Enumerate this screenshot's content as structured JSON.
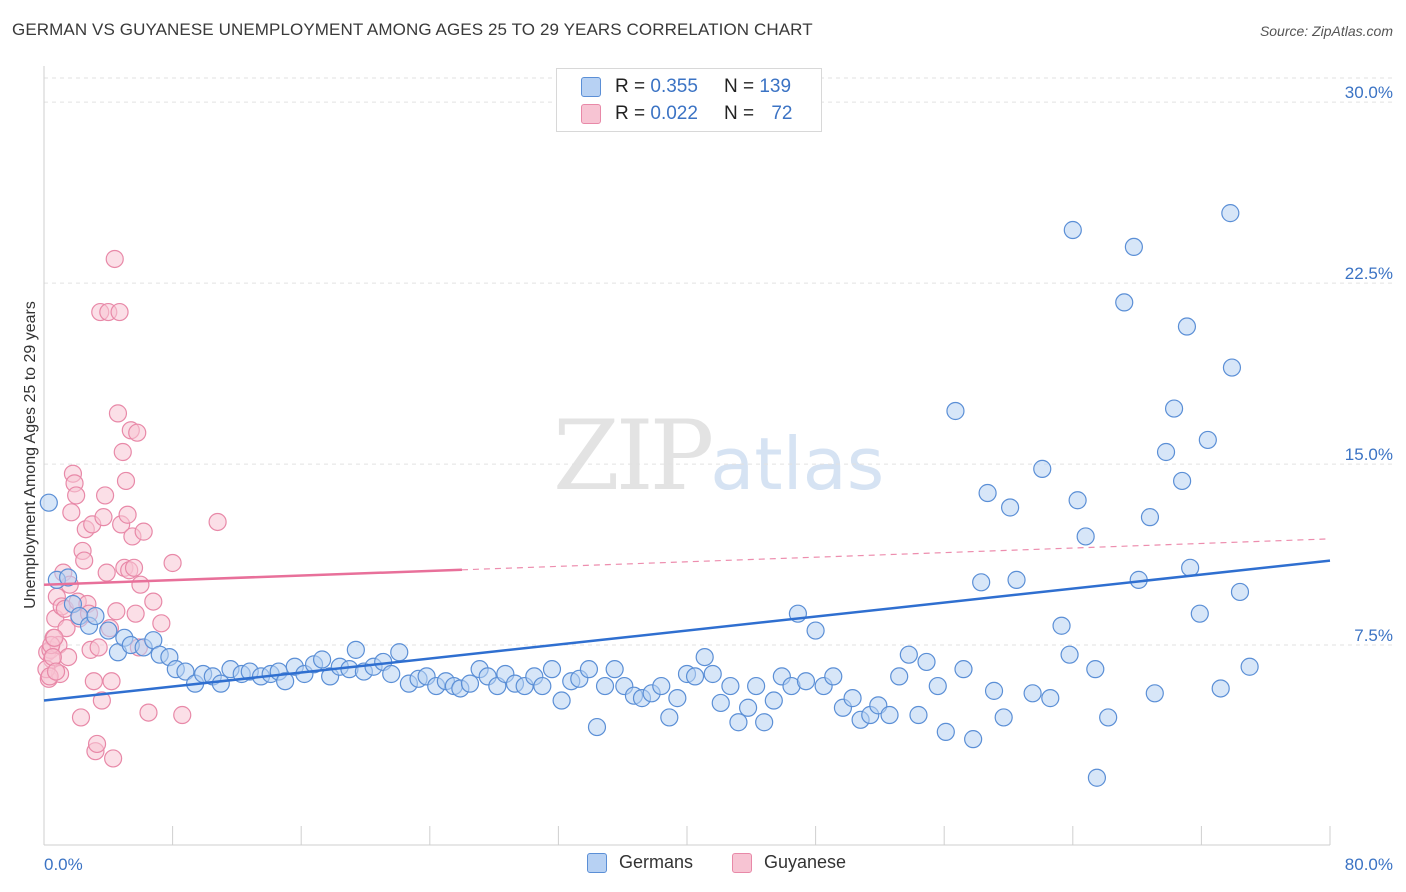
{
  "title": "GERMAN VS GUYANESE UNEMPLOYMENT AMONG AGES 25 TO 29 YEARS CORRELATION CHART",
  "source": "Source: ZipAtlas.com",
  "watermark": {
    "zip": "ZIP",
    "atlas": "atlas"
  },
  "legend": {
    "r_label": "R =",
    "n_label": "N =",
    "series": [
      {
        "name": "Germans",
        "r": "0.355",
        "n": "139"
      },
      {
        "name": "Guyanese",
        "r": "0.022",
        "n": "72"
      }
    ]
  },
  "colors": {
    "blue_fill": "#b7d1f3",
    "blue_stroke": "#5b8fd6",
    "blue_line": "#2f6fd0",
    "pink_fill": "#f7c4d3",
    "pink_stroke": "#e889a8",
    "pink_line": "#e8709a",
    "axis_text": "#3b73c4",
    "grid": "#e2e2e2"
  },
  "chart_data": {
    "type": "scatter",
    "title": "GERMAN VS GUYANESE UNEMPLOYMENT AMONG AGES 25 TO 29 YEARS CORRELATION CHART",
    "xlabel": "",
    "ylabel": "Unemployment Among Ages 25 to 29 years",
    "xlim": [
      0,
      80
    ],
    "ylim": [
      0,
      31
    ],
    "x_tick_labels": [
      "0.0%",
      "80.0%"
    ],
    "y_ticks": [
      7.5,
      15.0,
      22.5,
      30.0
    ],
    "y_tick_labels": [
      "7.5%",
      "15.0%",
      "22.5%",
      "30.0%"
    ],
    "grid": true,
    "legend_position": "top-center",
    "series": [
      {
        "name": "Germans",
        "trend": {
          "x0": 0,
          "y0": 5.2,
          "x1": 80,
          "y1": 11.0,
          "dashed_from": null
        },
        "points": [
          [
            0.3,
            13.4
          ],
          [
            0.8,
            10.2
          ],
          [
            1.5,
            10.3
          ],
          [
            1.8,
            9.2
          ],
          [
            2.2,
            8.7
          ],
          [
            2.8,
            8.3
          ],
          [
            3.2,
            8.7
          ],
          [
            4.0,
            8.1
          ],
          [
            4.6,
            7.2
          ],
          [
            5.0,
            7.8
          ],
          [
            5.4,
            7.5
          ],
          [
            6.2,
            7.4
          ],
          [
            6.8,
            7.7
          ],
          [
            7.2,
            7.1
          ],
          [
            7.8,
            7.0
          ],
          [
            8.2,
            6.5
          ],
          [
            8.8,
            6.4
          ],
          [
            9.4,
            5.9
          ],
          [
            9.9,
            6.3
          ],
          [
            10.5,
            6.2
          ],
          [
            11.0,
            5.9
          ],
          [
            11.6,
            6.5
          ],
          [
            12.3,
            6.3
          ],
          [
            12.8,
            6.4
          ],
          [
            13.5,
            6.2
          ],
          [
            14.1,
            6.3
          ],
          [
            14.6,
            6.4
          ],
          [
            15.0,
            6.0
          ],
          [
            15.6,
            6.6
          ],
          [
            16.2,
            6.3
          ],
          [
            16.8,
            6.7
          ],
          [
            17.3,
            6.9
          ],
          [
            17.8,
            6.2
          ],
          [
            18.4,
            6.6
          ],
          [
            19.0,
            6.5
          ],
          [
            19.4,
            7.3
          ],
          [
            19.9,
            6.4
          ],
          [
            20.5,
            6.6
          ],
          [
            21.1,
            6.8
          ],
          [
            21.6,
            6.3
          ],
          [
            22.1,
            7.2
          ],
          [
            22.7,
            5.9
          ],
          [
            23.3,
            6.1
          ],
          [
            23.8,
            6.2
          ],
          [
            24.4,
            5.8
          ],
          [
            25.0,
            6.0
          ],
          [
            25.5,
            5.8
          ],
          [
            25.9,
            5.7
          ],
          [
            26.5,
            5.9
          ],
          [
            27.1,
            6.5
          ],
          [
            27.6,
            6.2
          ],
          [
            28.2,
            5.8
          ],
          [
            28.7,
            6.3
          ],
          [
            29.3,
            5.9
          ],
          [
            29.9,
            5.8
          ],
          [
            30.5,
            6.2
          ],
          [
            31.0,
            5.8
          ],
          [
            31.6,
            6.5
          ],
          [
            32.2,
            5.2
          ],
          [
            32.8,
            6.0
          ],
          [
            33.3,
            6.1
          ],
          [
            33.9,
            6.5
          ],
          [
            34.4,
            4.1
          ],
          [
            34.9,
            5.8
          ],
          [
            35.5,
            6.5
          ],
          [
            36.1,
            5.8
          ],
          [
            36.7,
            5.4
          ],
          [
            37.2,
            5.3
          ],
          [
            37.8,
            5.5
          ],
          [
            38.4,
            5.8
          ],
          [
            38.9,
            4.5
          ],
          [
            39.4,
            5.3
          ],
          [
            40.0,
            6.3
          ],
          [
            40.5,
            6.2
          ],
          [
            41.1,
            7.0
          ],
          [
            41.6,
            6.3
          ],
          [
            42.1,
            5.1
          ],
          [
            42.7,
            5.8
          ],
          [
            43.2,
            4.3
          ],
          [
            43.8,
            4.9
          ],
          [
            44.3,
            5.8
          ],
          [
            44.8,
            4.3
          ],
          [
            45.4,
            5.2
          ],
          [
            45.9,
            6.2
          ],
          [
            46.5,
            5.8
          ],
          [
            46.9,
            8.8
          ],
          [
            47.4,
            6.0
          ],
          [
            48.0,
            8.1
          ],
          [
            48.5,
            5.8
          ],
          [
            49.1,
            6.2
          ],
          [
            49.7,
            4.9
          ],
          [
            50.3,
            5.3
          ],
          [
            50.8,
            4.4
          ],
          [
            51.4,
            4.6
          ],
          [
            51.9,
            5.0
          ],
          [
            52.6,
            4.6
          ],
          [
            53.2,
            6.2
          ],
          [
            53.8,
            7.1
          ],
          [
            54.4,
            4.6
          ],
          [
            54.9,
            6.8
          ],
          [
            55.6,
            5.8
          ],
          [
            56.1,
            3.9
          ],
          [
            56.7,
            17.2
          ],
          [
            57.2,
            6.5
          ],
          [
            57.8,
            3.6
          ],
          [
            58.3,
            10.1
          ],
          [
            58.7,
            13.8
          ],
          [
            59.1,
            5.6
          ],
          [
            59.7,
            4.5
          ],
          [
            60.1,
            13.2
          ],
          [
            60.5,
            10.2
          ],
          [
            61.5,
            5.5
          ],
          [
            62.1,
            14.8
          ],
          [
            62.6,
            5.3
          ],
          [
            63.3,
            8.3
          ],
          [
            63.8,
            7.1
          ],
          [
            64.3,
            13.5
          ],
          [
            64.8,
            12.0
          ],
          [
            65.4,
            6.5
          ],
          [
            66.2,
            4.5
          ],
          [
            64.0,
            24.7
          ],
          [
            68.1,
            10.2
          ],
          [
            68.8,
            12.8
          ],
          [
            69.1,
            5.5
          ],
          [
            69.8,
            15.5
          ],
          [
            70.3,
            17.3
          ],
          [
            67.2,
            21.7
          ],
          [
            67.8,
            24.0
          ],
          [
            70.8,
            14.3
          ],
          [
            71.1,
            20.7
          ],
          [
            71.3,
            10.7
          ],
          [
            71.9,
            8.8
          ],
          [
            72.4,
            16.0
          ],
          [
            73.2,
            5.7
          ],
          [
            73.8,
            25.4
          ],
          [
            73.9,
            19.0
          ],
          [
            74.4,
            9.7
          ],
          [
            75.0,
            6.6
          ],
          [
            65.5,
            2.0
          ]
        ]
      },
      {
        "name": "Guyanese",
        "trend": {
          "x0": 0,
          "y0": 10.0,
          "x1": 80,
          "y1": 11.9,
          "dashed_from": 26
        },
        "points": [
          [
            0.2,
            7.2
          ],
          [
            0.3,
            6.1
          ],
          [
            0.4,
            7.3
          ],
          [
            0.5,
            6.9
          ],
          [
            0.6,
            7.8
          ],
          [
            0.7,
            8.6
          ],
          [
            0.8,
            9.5
          ],
          [
            0.9,
            7.5
          ],
          [
            1.0,
            6.3
          ],
          [
            1.1,
            9.1
          ],
          [
            1.2,
            10.5
          ],
          [
            1.3,
            9.0
          ],
          [
            1.4,
            8.2
          ],
          [
            1.5,
            7.0
          ],
          [
            1.6,
            10.0
          ],
          [
            1.7,
            13.0
          ],
          [
            1.8,
            14.6
          ],
          [
            1.9,
            14.2
          ],
          [
            2.0,
            13.7
          ],
          [
            2.1,
            9.3
          ],
          [
            2.2,
            8.6
          ],
          [
            2.3,
            4.5
          ],
          [
            2.4,
            11.4
          ],
          [
            2.5,
            11.0
          ],
          [
            2.6,
            12.3
          ],
          [
            2.7,
            9.2
          ],
          [
            2.8,
            8.8
          ],
          [
            2.9,
            7.3
          ],
          [
            3.0,
            12.5
          ],
          [
            3.1,
            6.0
          ],
          [
            3.2,
            3.1
          ],
          [
            3.3,
            3.4
          ],
          [
            3.4,
            7.4
          ],
          [
            3.5,
            21.3
          ],
          [
            3.6,
            5.2
          ],
          [
            3.7,
            12.8
          ],
          [
            3.8,
            13.7
          ],
          [
            3.9,
            10.5
          ],
          [
            4.0,
            21.3
          ],
          [
            4.1,
            8.2
          ],
          [
            4.2,
            6.0
          ],
          [
            4.3,
            2.8
          ],
          [
            4.4,
            23.5
          ],
          [
            4.5,
            8.9
          ],
          [
            4.6,
            17.1
          ],
          [
            4.7,
            21.3
          ],
          [
            4.8,
            12.5
          ],
          [
            4.9,
            15.5
          ],
          [
            5.0,
            10.7
          ],
          [
            5.1,
            14.3
          ],
          [
            5.2,
            12.9
          ],
          [
            5.3,
            10.6
          ],
          [
            5.4,
            16.4
          ],
          [
            5.5,
            12.0
          ],
          [
            5.6,
            10.7
          ],
          [
            5.7,
            8.8
          ],
          [
            5.8,
            16.3
          ],
          [
            5.9,
            7.4
          ],
          [
            6.0,
            10.0
          ],
          [
            6.2,
            12.2
          ],
          [
            6.5,
            4.7
          ],
          [
            6.8,
            9.3
          ],
          [
            7.3,
            8.4
          ],
          [
            8.0,
            10.9
          ],
          [
            8.6,
            4.6
          ],
          [
            10.8,
            12.6
          ],
          [
            0.15,
            6.5
          ],
          [
            0.35,
            6.2
          ],
          [
            0.45,
            7.5
          ],
          [
            0.55,
            7.0
          ],
          [
            0.65,
            7.8
          ],
          [
            0.75,
            6.4
          ]
        ]
      }
    ]
  }
}
